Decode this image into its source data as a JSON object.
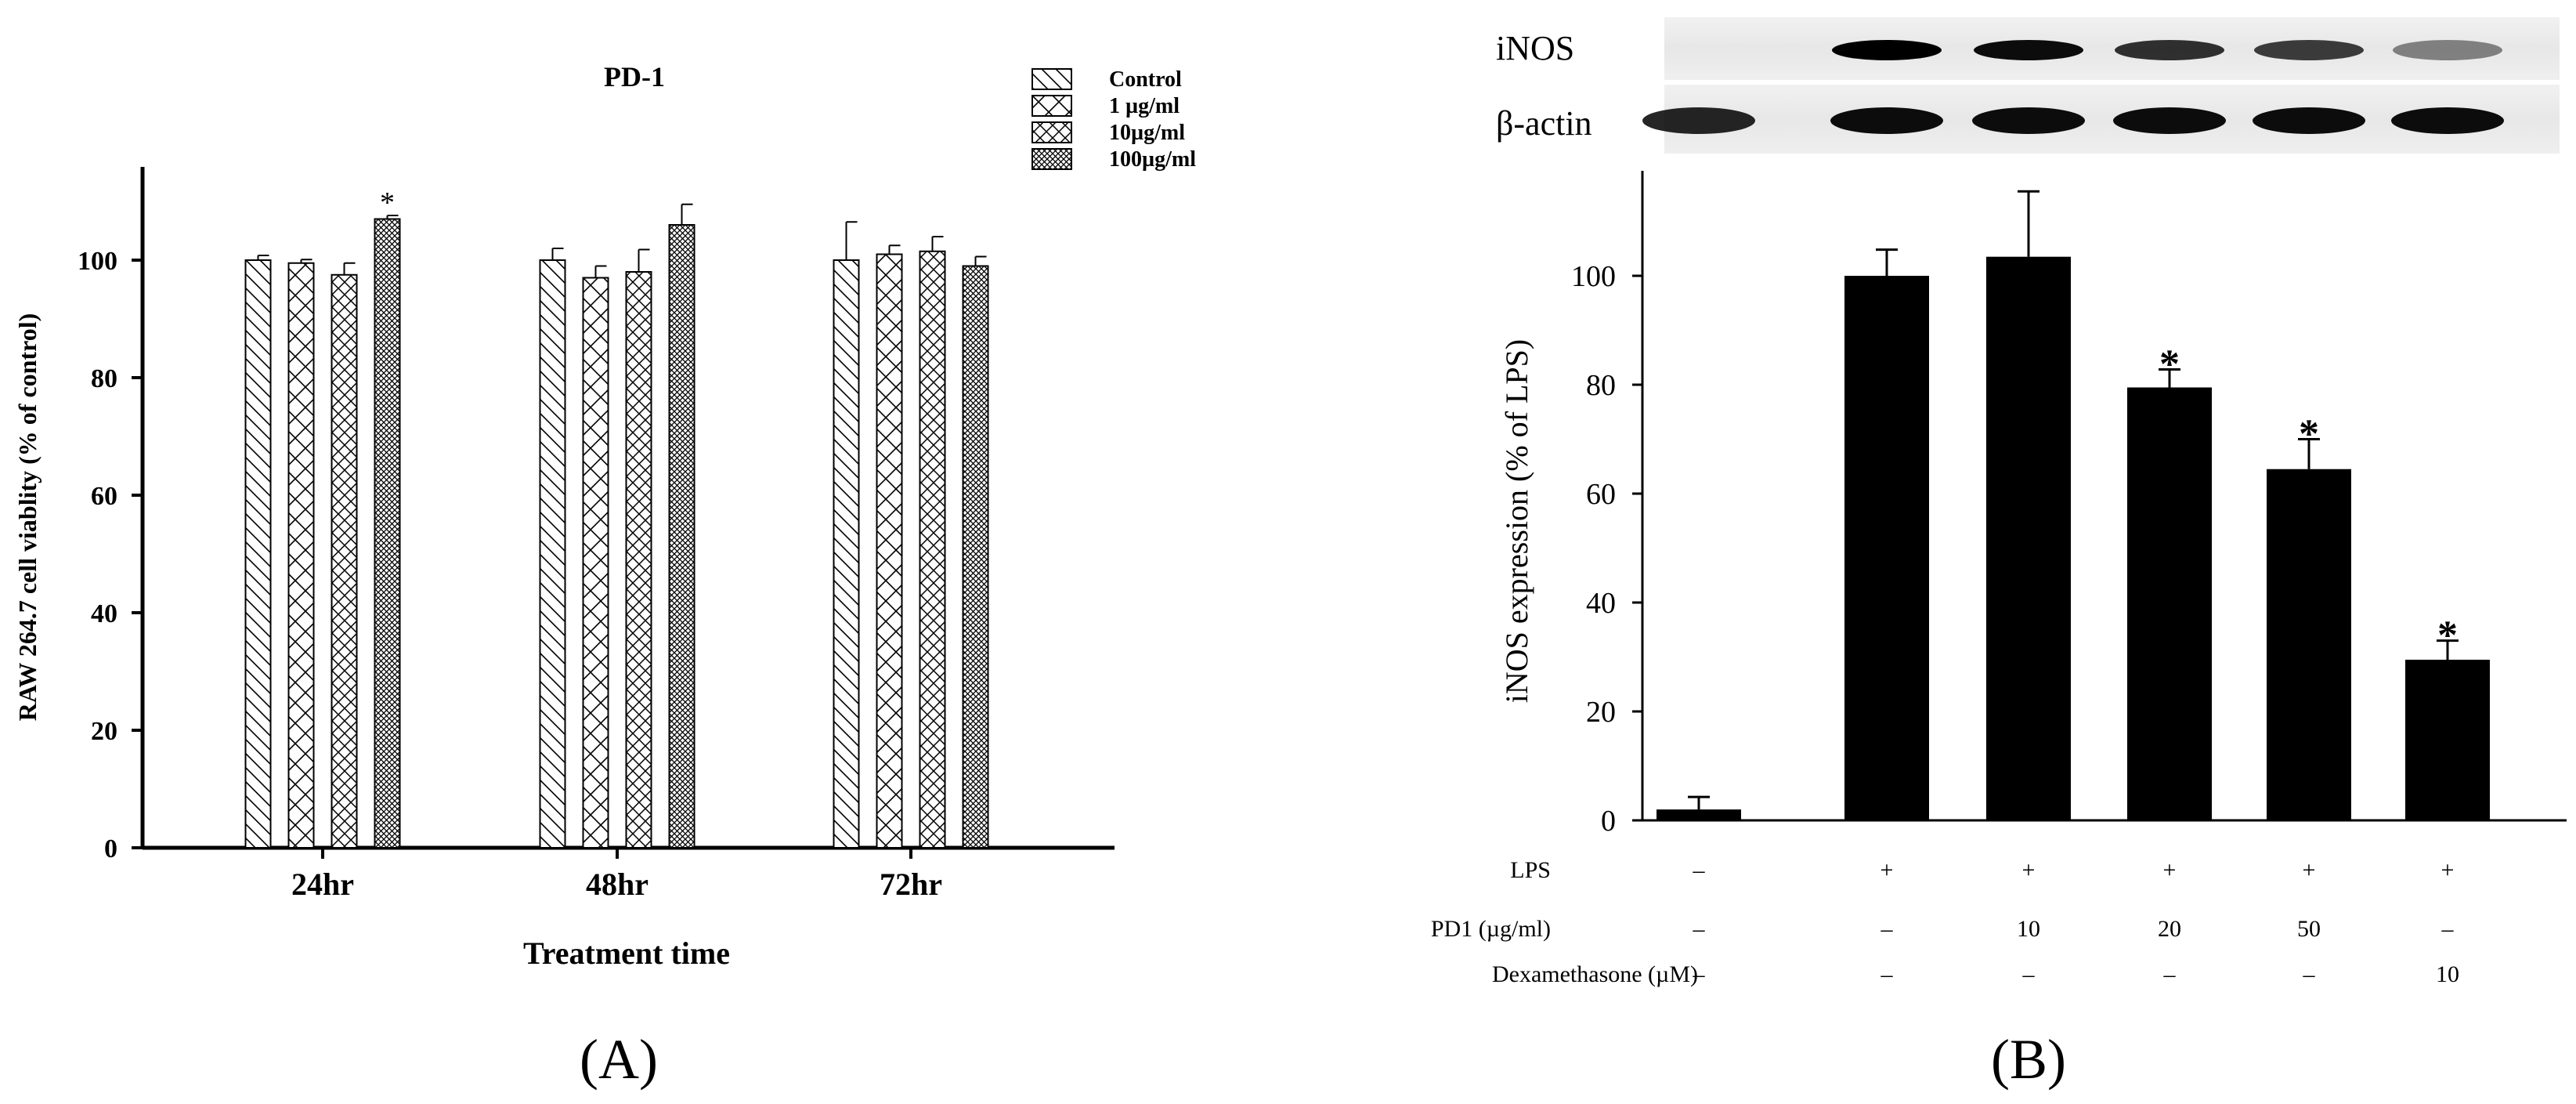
{
  "chart_data": [
    {
      "type": "bar",
      "title": "PD-1",
      "xlabel": "Treatment time",
      "ylabel": "RAW 264.7 cell viablity (% of control)",
      "categories": [
        "24hr",
        "48hr",
        "72hr"
      ],
      "ylim": [
        0,
        110
      ],
      "yticks": [
        0,
        20,
        40,
        60,
        80,
        100
      ],
      "legend_position": "top-right",
      "series": [
        {
          "name": "Control",
          "pattern": "diag-down",
          "values": [
            100,
            100,
            100
          ],
          "errors": [
            0.8,
            2.0,
            6.5
          ]
        },
        {
          "name": "1 µg/ml",
          "pattern": "cross-sparse",
          "values": [
            99.5,
            97,
            101
          ],
          "errors": [
            0.6,
            2.0,
            1.5
          ]
        },
        {
          "name": "10µg/ml",
          "pattern": "cross-dense",
          "values": [
            97.5,
            98,
            101.5
          ],
          "errors": [
            2.0,
            3.8,
            2.5
          ]
        },
        {
          "name": "100µg/ml",
          "pattern": "cross-fine",
          "values": [
            107,
            106,
            99
          ],
          "errors": [
            0.6,
            3.5,
            1.6
          ]
        }
      ],
      "annotations": [
        {
          "category": "24hr",
          "series": "100µg/ml",
          "text": "*"
        }
      ],
      "panel_label": "A"
    },
    {
      "type": "bar",
      "title": "",
      "ylabel": "iNOS expression (% of LPS)",
      "ylim": [
        0,
        120
      ],
      "yticks": [
        0,
        20,
        40,
        60,
        80,
        100
      ],
      "bar_color": "#000000",
      "values": [
        2,
        100,
        103.5,
        79.5,
        64.5,
        29.5
      ],
      "errors": [
        2.3,
        4.8,
        12.0,
        3.3,
        5.5,
        3.5
      ],
      "significance": [
        "",
        "",
        "",
        "*",
        "*",
        "*"
      ],
      "treatments": [
        {
          "label": "LPS",
          "values": [
            "–",
            "+",
            "+",
            "+",
            "+",
            "+"
          ]
        },
        {
          "label": "PD1 (µg/ml)",
          "values": [
            "–",
            "–",
            "10",
            "20",
            "50",
            "–"
          ]
        },
        {
          "label": "Dexamethasone (µM)",
          "values": [
            "–",
            "–",
            "–",
            "–",
            "–",
            "10"
          ]
        }
      ],
      "blot": {
        "rows": [
          "iNOS",
          "β-actin"
        ]
      },
      "panel_label": "B"
    }
  ],
  "panel_labels": [
    "(A)",
    "(B)"
  ]
}
